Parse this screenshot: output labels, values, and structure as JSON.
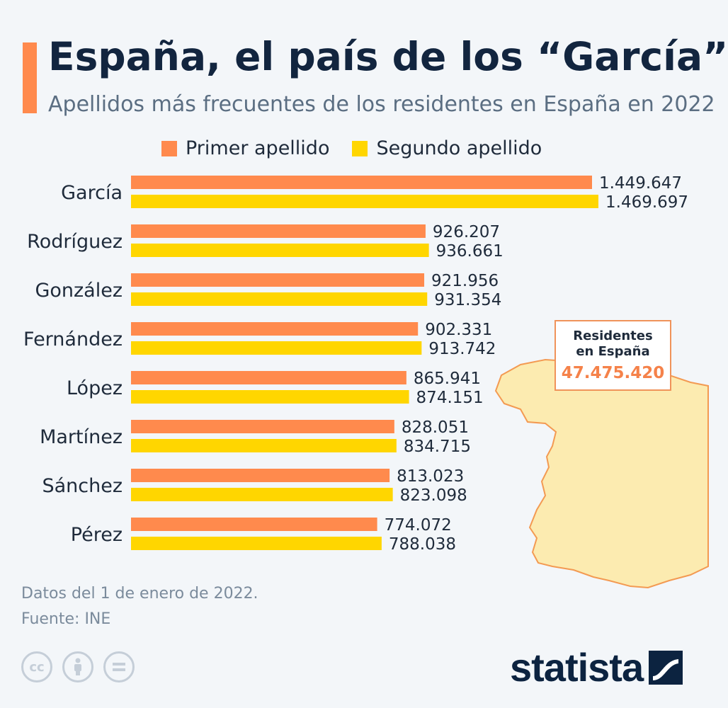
{
  "header": {
    "title": "España, el país de los “García”",
    "subtitle": "Apellidos más frecuentes de los residentes en España en 2022"
  },
  "colors": {
    "accent": "#ff8a4d",
    "primer": "#ff8a4d",
    "segundo": "#ffd600",
    "map_fill": "#fcebb0",
    "map_stroke": "#f39a52"
  },
  "chart_data": {
    "type": "bar",
    "orientation": "horizontal",
    "categories": [
      "García",
      "Rodríguez",
      "González",
      "Fernández",
      "López",
      "Martínez",
      "Sánchez",
      "Pérez"
    ],
    "series": [
      {
        "name": "Primer apellido",
        "values": [
          1449647,
          926207,
          921956,
          902331,
          865941,
          828051,
          813023,
          774072
        ],
        "labels": [
          "1.449.647",
          "926.207",
          "921.956",
          "902.331",
          "865.941",
          "828.051",
          "813.023",
          "774.072"
        ]
      },
      {
        "name": "Segundo apellido",
        "values": [
          1469697,
          936661,
          931354,
          913742,
          874151,
          834715,
          823098,
          788038
        ],
        "labels": [
          "1.469.697",
          "936.661",
          "931.354",
          "913.742",
          "874.151",
          "834.715",
          "823.098",
          "788.038"
        ]
      }
    ],
    "legend_position": "top",
    "grid": false
  },
  "callout": {
    "label_line1": "Residentes",
    "label_line2": "en España",
    "value": "47.475.420"
  },
  "footer": {
    "note": "Datos del 1 de enero de 2022.",
    "source": "Fuente: INE",
    "license_icons": [
      "cc-icon",
      "by-person-icon",
      "nd-equals-icon"
    ],
    "brand": "statista"
  }
}
